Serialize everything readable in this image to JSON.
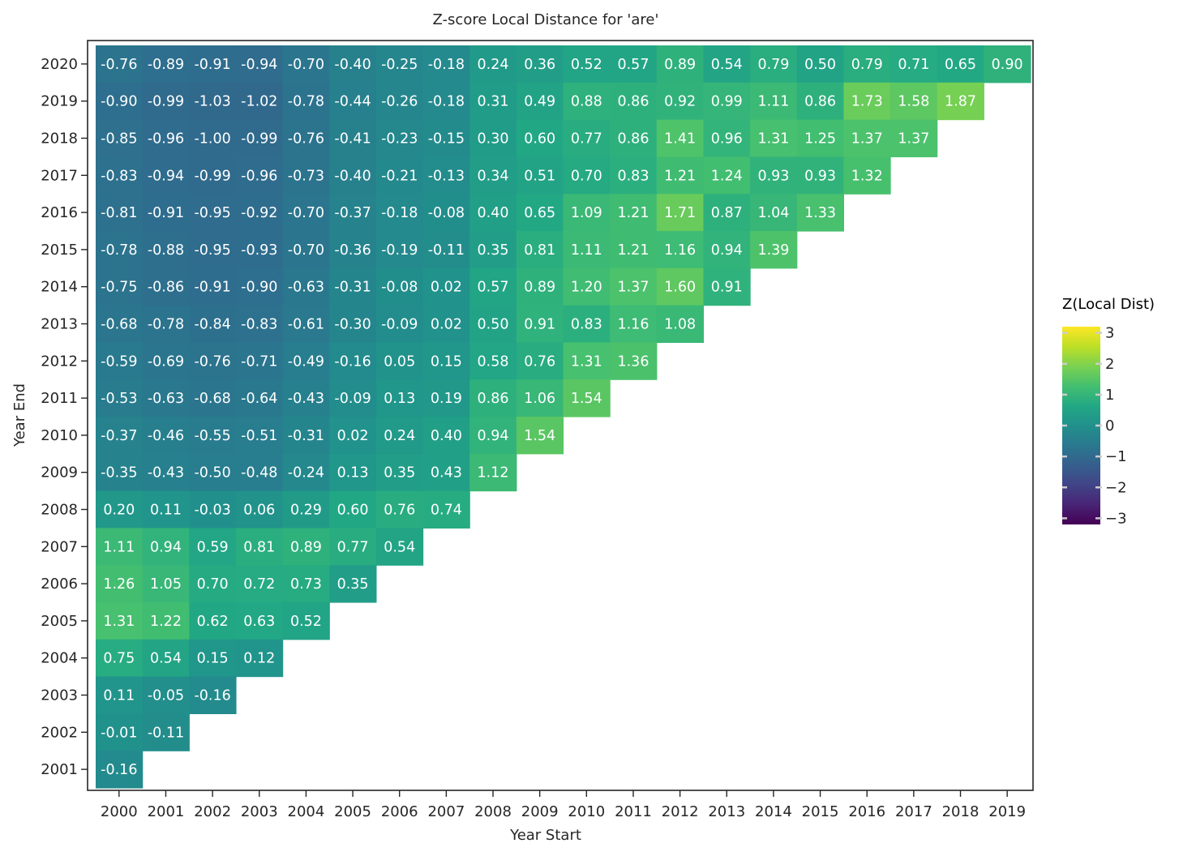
{
  "chart_data": {
    "type": "heatmap",
    "title": "Z-score Local Distance for 'are'",
    "xlabel": "Year Start",
    "ylabel": "Year End",
    "x_categories": [
      "2000",
      "2001",
      "2002",
      "2003",
      "2004",
      "2005",
      "2006",
      "2007",
      "2008",
      "2009",
      "2010",
      "2011",
      "2012",
      "2013",
      "2014",
      "2015",
      "2016",
      "2017",
      "2018",
      "2019"
    ],
    "y_categories": [
      "2020",
      "2019",
      "2018",
      "2017",
      "2016",
      "2015",
      "2014",
      "2013",
      "2012",
      "2011",
      "2010",
      "2009",
      "2008",
      "2007",
      "2006",
      "2005",
      "2004",
      "2003",
      "2002",
      "2001"
    ],
    "value_labels": [
      [
        "-0.76",
        "-0.89",
        "-0.91",
        "-0.94",
        "-0.70",
        "-0.40",
        "-0.25",
        "-0.18",
        "0.24",
        "0.36",
        "0.52",
        "0.57",
        "0.89",
        "0.54",
        "0.79",
        "0.50",
        "0.79",
        "0.71",
        "0.65",
        "0.90"
      ],
      [
        "-0.90",
        "-0.99",
        "-1.03",
        "-1.02",
        "-0.78",
        "-0.44",
        "-0.26",
        "-0.18",
        "0.31",
        "0.49",
        "0.88",
        "0.86",
        "0.92",
        "0.99",
        "1.11",
        "0.86",
        "1.73",
        "1.58",
        "1.87"
      ],
      [
        "-0.85",
        "-0.96",
        "-1.00",
        "-0.99",
        "-0.76",
        "-0.41",
        "-0.23",
        "-0.15",
        "0.30",
        "0.60",
        "0.77",
        "0.86",
        "1.41",
        "0.96",
        "1.31",
        "1.25",
        "1.37",
        "1.37"
      ],
      [
        "-0.83",
        "-0.94",
        "-0.99",
        "-0.96",
        "-0.73",
        "-0.40",
        "-0.21",
        "-0.13",
        "0.34",
        "0.51",
        "0.70",
        "0.83",
        "1.21",
        "1.24",
        "0.93",
        "0.93",
        "1.32"
      ],
      [
        "-0.81",
        "-0.91",
        "-0.95",
        "-0.92",
        "-0.70",
        "-0.37",
        "-0.18",
        "-0.08",
        "0.40",
        "0.65",
        "1.09",
        "1.21",
        "1.71",
        "0.87",
        "1.04",
        "1.33"
      ],
      [
        "-0.78",
        "-0.88",
        "-0.95",
        "-0.93",
        "-0.70",
        "-0.36",
        "-0.19",
        "-0.11",
        "0.35",
        "0.81",
        "1.11",
        "1.21",
        "1.16",
        "0.94",
        "1.39"
      ],
      [
        "-0.75",
        "-0.86",
        "-0.91",
        "-0.90",
        "-0.63",
        "-0.31",
        "-0.08",
        "0.02",
        "0.57",
        "0.89",
        "1.20",
        "1.37",
        "1.60",
        "0.91"
      ],
      [
        "-0.68",
        "-0.78",
        "-0.84",
        "-0.83",
        "-0.61",
        "-0.30",
        "-0.09",
        "0.02",
        "0.50",
        "0.91",
        "0.83",
        "1.16",
        "1.08"
      ],
      [
        "-0.59",
        "-0.69",
        "-0.76",
        "-0.71",
        "-0.49",
        "-0.16",
        "0.05",
        "0.15",
        "0.58",
        "0.76",
        "1.31",
        "1.36"
      ],
      [
        "-0.53",
        "-0.63",
        "-0.68",
        "-0.64",
        "-0.43",
        "-0.09",
        "0.13",
        "0.19",
        "0.86",
        "1.06",
        "1.54"
      ],
      [
        "-0.37",
        "-0.46",
        "-0.55",
        "-0.51",
        "-0.31",
        "0.02",
        "0.24",
        "0.40",
        "0.94",
        "1.54"
      ],
      [
        "-0.35",
        "-0.43",
        "-0.50",
        "-0.48",
        "-0.24",
        "0.13",
        "0.35",
        "0.43",
        "1.12"
      ],
      [
        "0.20",
        "0.11",
        "-0.03",
        "0.06",
        "0.29",
        "0.60",
        "0.76",
        "0.74"
      ],
      [
        "1.11",
        "0.94",
        "0.59",
        "0.81",
        "0.89",
        "0.77",
        "0.54"
      ],
      [
        "1.26",
        "1.05",
        "0.70",
        "0.72",
        "0.73",
        "0.35"
      ],
      [
        "1.31",
        "1.22",
        "0.62",
        "0.63",
        "0.52"
      ],
      [
        "0.75",
        "0.54",
        "0.15",
        "0.12"
      ],
      [
        "0.11",
        "-0.05",
        "-0.16"
      ],
      [
        "-0.01",
        "-0.11"
      ],
      [
        "-0.16"
      ]
    ],
    "colorbar": {
      "title": "Z(Local Dist)",
      "range": [
        -3.2,
        3.2
      ],
      "tick_values": [
        3,
        2,
        1,
        0,
        -1,
        -2,
        -3
      ],
      "tick_labels": [
        "3",
        "2",
        "1",
        "0",
        "−1",
        "−2",
        "−3"
      ],
      "colormap": "viridis"
    },
    "grid": false,
    "legend_position": "right"
  }
}
